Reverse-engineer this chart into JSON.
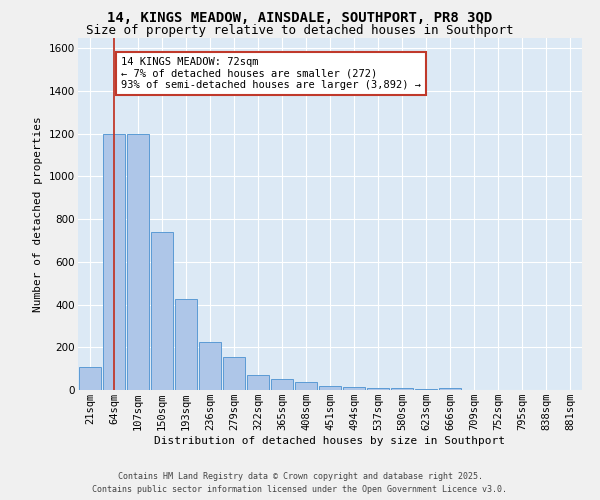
{
  "title": "14, KINGS MEADOW, AINSDALE, SOUTHPORT, PR8 3QD",
  "subtitle": "Size of property relative to detached houses in Southport",
  "xlabel": "Distribution of detached houses by size in Southport",
  "ylabel": "Number of detached properties",
  "bar_labels": [
    "21sqm",
    "64sqm",
    "107sqm",
    "150sqm",
    "193sqm",
    "236sqm",
    "279sqm",
    "322sqm",
    "365sqm",
    "408sqm",
    "451sqm",
    "494sqm",
    "537sqm",
    "580sqm",
    "623sqm",
    "666sqm",
    "709sqm",
    "752sqm",
    "795sqm",
    "838sqm",
    "881sqm"
  ],
  "bar_values": [
    110,
    1200,
    1200,
    740,
    425,
    225,
    155,
    70,
    50,
    37,
    18,
    12,
    8,
    8,
    3,
    10,
    0,
    0,
    0,
    0,
    0
  ],
  "bar_color": "#aec6e8",
  "bar_edge_color": "#5b9bd5",
  "vline_x": 1,
  "vline_color": "#c0392b",
  "annotation_text": "14 KINGS MEADOW: 72sqm\n← 7% of detached houses are smaller (272)\n93% of semi-detached houses are larger (3,892) →",
  "annotation_box_edge": "#c0392b",
  "ylim": [
    0,
    1650
  ],
  "yticks": [
    0,
    200,
    400,
    600,
    800,
    1000,
    1200,
    1400,
    1600
  ],
  "bg_color": "#dce9f5",
  "fig_color": "#f0f0f0",
  "grid_color": "#ffffff",
  "footer1": "Contains HM Land Registry data © Crown copyright and database right 2025.",
  "footer2": "Contains public sector information licensed under the Open Government Licence v3.0.",
  "title_fontsize": 10,
  "subtitle_fontsize": 9,
  "axis_label_fontsize": 8,
  "tick_fontsize": 7.5,
  "annotation_fontsize": 7.5,
  "footer_fontsize": 6
}
